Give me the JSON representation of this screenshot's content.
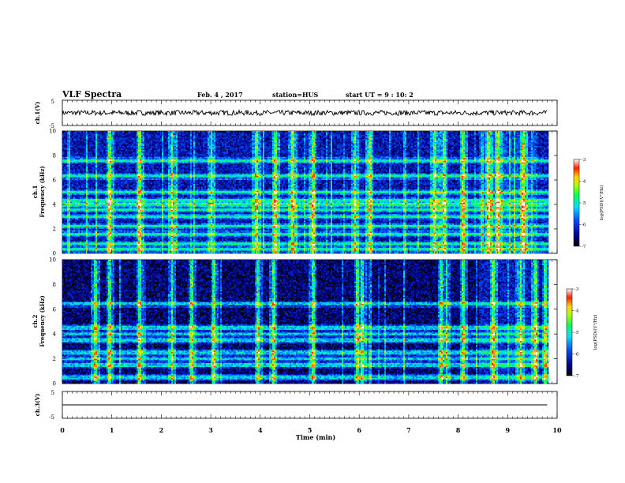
{
  "header": {
    "title": "VLF Spectra",
    "date": "Feb. 4 , 2017",
    "station": "station=HUS",
    "start": "start UT =  9 : 10: 2"
  },
  "chart_data": [
    {
      "type": "line",
      "name": "ch1-waveform",
      "ylabel": "ch.1(V)",
      "ylim": [
        -5,
        5
      ],
      "y_ticks": [
        "5",
        "-5"
      ],
      "x_range": [
        0,
        10
      ],
      "trace": {
        "x_end": 9.8,
        "mean": 0.0,
        "amplitude_approx": 1.0
      }
    },
    {
      "type": "heatmap",
      "name": "ch1-spectrogram",
      "ylabel": "ch.1\nFrequency (kHz)",
      "y_ticks": [
        "0",
        "2",
        "4",
        "6",
        "8",
        "10"
      ],
      "ylim": [
        0,
        10
      ],
      "x_range": [
        0,
        9.8
      ],
      "colorbar": {
        "label": "log(PSD)(V²/Hz)",
        "ticks": [
          "-3",
          "-4",
          "-5",
          "-6",
          "-7"
        ],
        "range": [
          -7,
          -3
        ]
      },
      "background_level": -6.3,
      "horizontal_bands_khz": [
        0.3,
        0.8,
        1.6,
        2.2,
        3.0,
        3.6,
        4.0,
        4.3,
        5.0,
        6.3,
        7.6
      ],
      "bright_vertical_events_min": [
        0.95,
        1.55,
        2.2,
        3.0,
        3.9,
        4.3,
        4.65,
        5.05,
        5.9,
        6.2,
        7.5,
        7.7,
        8.1,
        8.6,
        8.8,
        9.3
      ]
    },
    {
      "type": "heatmap",
      "name": "ch2-spectrogram",
      "ylabel": "ch.2\nFrequency (kHz)",
      "y_ticks": [
        "0",
        "2",
        "4",
        "6",
        "8",
        "10"
      ],
      "ylim": [
        0,
        10
      ],
      "x_range": [
        0,
        9.8
      ],
      "colorbar": {
        "label": "log(PSD)(V²/Hz)",
        "ticks": [
          "-3",
          "-4",
          "-5",
          "-6",
          "-7"
        ],
        "range": [
          -7,
          -3
        ]
      },
      "background_level": -6.6,
      "horizontal_bands_khz": [
        0.5,
        1.5,
        2.0,
        2.5,
        3.5,
        4.0,
        4.5,
        6.4
      ],
      "bright_vertical_events_min": [
        0.65,
        0.95,
        1.55,
        2.2,
        2.6,
        3.05,
        3.95,
        4.25,
        5.05,
        5.95,
        6.05,
        7.65,
        7.75,
        8.1,
        8.7,
        9.25,
        9.55,
        9.75
      ]
    },
    {
      "type": "line",
      "name": "ch3-waveform",
      "ylabel": "ch.3(V)",
      "ylim": [
        -5,
        5
      ],
      "y_ticks": [
        "5",
        "-5"
      ],
      "x_range": [
        0,
        10
      ],
      "trace": {
        "x_end": 9.8,
        "mean": 0.0,
        "amplitude_approx": 0.0
      }
    }
  ],
  "x_axis": {
    "label": "Time (min)",
    "ticks": [
      "0",
      "1",
      "2",
      "3",
      "4",
      "5",
      "6",
      "7",
      "8",
      "9",
      "10"
    ]
  }
}
